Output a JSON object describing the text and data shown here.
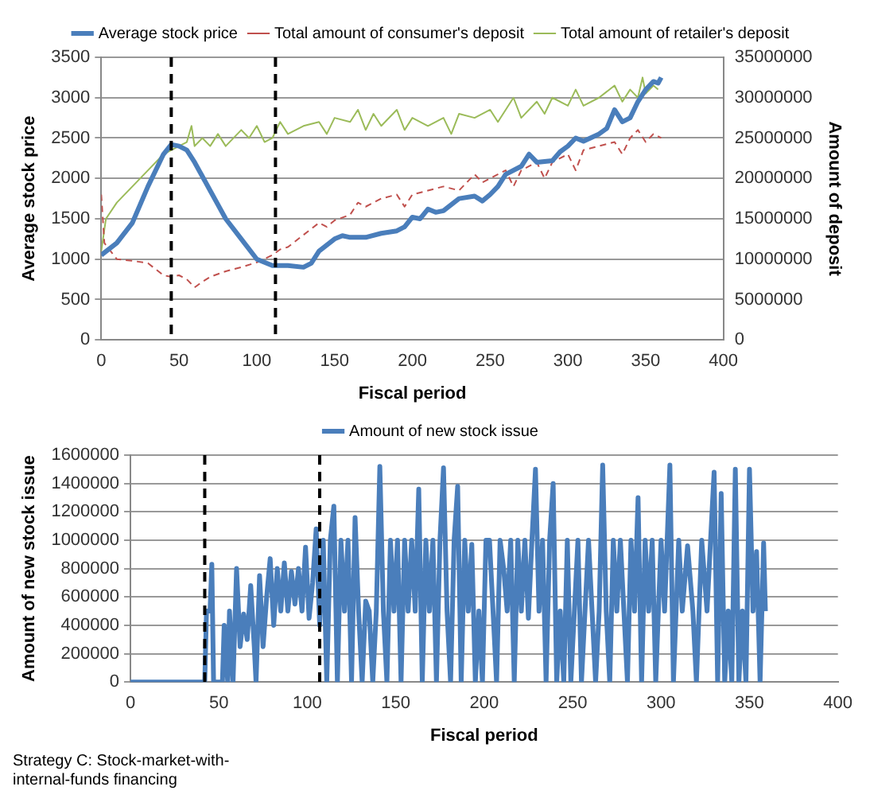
{
  "chart_data": [
    {
      "type": "line",
      "xlabel": "Fiscal period",
      "ylabel": "Average stock price",
      "y2label": "Amount of deposit",
      "xlim": [
        0,
        400
      ],
      "xticks": [
        0,
        50,
        100,
        150,
        200,
        250,
        300,
        350,
        400
      ],
      "ylim": [
        0,
        3500
      ],
      "yticks": [
        0,
        500,
        1000,
        1500,
        2000,
        2500,
        3000,
        3500
      ],
      "y2lim": [
        0,
        35000000
      ],
      "y2ticks": [
        0,
        5000000,
        10000000,
        15000000,
        20000000,
        25000000,
        30000000,
        35000000
      ],
      "grid": "y",
      "legend": "top",
      "marker": "none",
      "ref_lines": [
        {
          "axis": "x",
          "value": 45,
          "color": "#000000",
          "line_style": "dashed"
        },
        {
          "axis": "x",
          "value": 112,
          "color": "#000000",
          "line_style": "dashed"
        }
      ],
      "series": [
        {
          "name": "Average stock price",
          "color": "#4a7ebb",
          "line_style": "solid",
          "x": [
            0,
            10,
            20,
            30,
            40,
            45,
            50,
            55,
            60,
            70,
            80,
            90,
            100,
            110,
            120,
            130,
            135,
            140,
            150,
            155,
            160,
            170,
            180,
            190,
            195,
            200,
            205,
            210,
            215,
            220,
            230,
            240,
            245,
            250,
            255,
            260,
            270,
            275,
            280,
            290,
            295,
            300,
            305,
            310,
            320,
            325,
            330,
            335,
            340,
            345,
            350,
            355,
            358,
            360
          ],
          "values": [
            1050,
            1200,
            1450,
            1900,
            2300,
            2420,
            2400,
            2350,
            2200,
            1850,
            1500,
            1250,
            1000,
            920,
            920,
            900,
            950,
            1100,
            1250,
            1290,
            1270,
            1270,
            1320,
            1350,
            1400,
            1520,
            1500,
            1620,
            1580,
            1600,
            1750,
            1780,
            1720,
            1800,
            1900,
            2050,
            2150,
            2300,
            2200,
            2220,
            2330,
            2400,
            2500,
            2460,
            2550,
            2620,
            2850,
            2700,
            2750,
            2950,
            3100,
            3200,
            3180,
            3250
          ]
        },
        {
          "name": "Total amount of consumer's deposit",
          "color": "#c0504d",
          "line_style": "dashed",
          "axis": "y2",
          "x": [
            0,
            2,
            10,
            20,
            30,
            40,
            45,
            50,
            55,
            60,
            65,
            70,
            80,
            90,
            100,
            110,
            115,
            120,
            130,
            140,
            145,
            150,
            160,
            165,
            170,
            180,
            190,
            195,
            200,
            210,
            220,
            230,
            240,
            245,
            250,
            260,
            265,
            270,
            280,
            285,
            290,
            300,
            305,
            310,
            320,
            330,
            335,
            340,
            345,
            350,
            355,
            360
          ],
          "values": [
            18000000,
            12000000,
            10000000,
            9800000,
            9500000,
            8000000,
            7800000,
            8000000,
            7500000,
            6500000,
            7200000,
            7800000,
            8500000,
            9000000,
            9600000,
            10500000,
            11200000,
            11500000,
            13000000,
            14500000,
            14000000,
            14800000,
            15500000,
            17000000,
            16500000,
            17500000,
            18000000,
            16500000,
            18000000,
            18500000,
            19000000,
            18500000,
            20500000,
            19500000,
            20000000,
            21000000,
            19000000,
            21000000,
            22000000,
            20000000,
            22000000,
            23000000,
            21000000,
            23500000,
            24000000,
            24500000,
            23000000,
            25000000,
            26000000,
            24500000,
            25500000,
            25000000
          ]
        },
        {
          "name": "Total amount of retailer's deposit",
          "color": "#9bbb59",
          "line_style": "solid",
          "axis": "y2",
          "x": [
            0,
            3,
            10,
            20,
            30,
            40,
            50,
            55,
            58,
            60,
            65,
            70,
            75,
            80,
            90,
            95,
            100,
            105,
            110,
            115,
            120,
            130,
            140,
            145,
            150,
            160,
            165,
            170,
            175,
            180,
            190,
            195,
            200,
            210,
            220,
            225,
            230,
            240,
            250,
            255,
            260,
            265,
            270,
            280,
            285,
            290,
            300,
            305,
            310,
            320,
            330,
            335,
            340,
            345,
            348,
            350,
            355,
            358
          ],
          "values": [
            11000000,
            15000000,
            17000000,
            19000000,
            21000000,
            23000000,
            24000000,
            24500000,
            26500000,
            24000000,
            25000000,
            24000000,
            25500000,
            24000000,
            26000000,
            25000000,
            26500000,
            24500000,
            25000000,
            27000000,
            25500000,
            26500000,
            27000000,
            25500000,
            27500000,
            27000000,
            28500000,
            26000000,
            28000000,
            26500000,
            28500000,
            26000000,
            27500000,
            26500000,
            27500000,
            25500000,
            28000000,
            27500000,
            28500000,
            27000000,
            28500000,
            30000000,
            27500000,
            29500000,
            28000000,
            30000000,
            29000000,
            31000000,
            29000000,
            30000000,
            31500000,
            29500000,
            31000000,
            30000000,
            32500000,
            30500000,
            31500000,
            31000000
          ]
        }
      ]
    },
    {
      "type": "line",
      "xlabel": "Fiscal period",
      "ylabel": "Amount of new stock issue",
      "xlim": [
        0,
        400
      ],
      "xticks": [
        0,
        50,
        100,
        150,
        200,
        250,
        300,
        350,
        400
      ],
      "ylim": [
        0,
        1600000
      ],
      "yticks": [
        0,
        200000,
        400000,
        600000,
        800000,
        1000000,
        1200000,
        1400000,
        1600000
      ],
      "grid": "y",
      "legend": "top",
      "marker": "none",
      "ref_lines": [
        {
          "axis": "x",
          "value": 42,
          "color": "#000000",
          "line_style": "dashed"
        },
        {
          "axis": "x",
          "value": 107,
          "color": "#000000",
          "line_style": "dashed"
        }
      ],
      "annotations": [
        "Strategy C:  Stock-market-with-internal-funds financing"
      ],
      "series": [
        {
          "name": "Amount of new stock issue",
          "color": "#4a7ebb",
          "line_style": "solid",
          "x": [
            0,
            20,
            42,
            43,
            45,
            46,
            47,
            52,
            53,
            55,
            56,
            58,
            60,
            62,
            64,
            66,
            68,
            70,
            71,
            73,
            75,
            77,
            79,
            81,
            83,
            85,
            87,
            89,
            91,
            93,
            95,
            97,
            99,
            101,
            103,
            105,
            107,
            109,
            111,
            113,
            115,
            117,
            119,
            121,
            123,
            125,
            127,
            129,
            131,
            133,
            135,
            137,
            139,
            141,
            143,
            145,
            147,
            149,
            151,
            153,
            155,
            157,
            159,
            161,
            163,
            165,
            167,
            169,
            171,
            173,
            175,
            177,
            179,
            181,
            183,
            185,
            187,
            189,
            191,
            193,
            195,
            197,
            199,
            201,
            203,
            205,
            207,
            209,
            211,
            213,
            215,
            217,
            219,
            221,
            223,
            225,
            227,
            229,
            231,
            233,
            235,
            237,
            239,
            241,
            243,
            245,
            247,
            249,
            251,
            253,
            255,
            257,
            259,
            261,
            263,
            265,
            267,
            269,
            271,
            273,
            275,
            277,
            279,
            281,
            283,
            285,
            287,
            289,
            291,
            293,
            295,
            297,
            300,
            302,
            305,
            307,
            310,
            312,
            315,
            318,
            320,
            323,
            326,
            328,
            330,
            332,
            334,
            336,
            338,
            340,
            342,
            344,
            346,
            348,
            350,
            352,
            354,
            356,
            358,
            359
          ],
          "values": [
            0,
            0,
            0,
            500000,
            500000,
            830000,
            0,
            0,
            400000,
            0,
            500000,
            0,
            800000,
            250000,
            480000,
            300000,
            680000,
            250000,
            0,
            750000,
            250000,
            600000,
            870000,
            400000,
            800000,
            500000,
            840000,
            500000,
            780000,
            550000,
            800000,
            500000,
            950000,
            450000,
            700000,
            1080000,
            400000,
            1000000,
            0,
            1000000,
            1240000,
            0,
            1000000,
            500000,
            1000000,
            0,
            1160000,
            500000,
            0,
            570000,
            500000,
            0,
            500000,
            1520000,
            500000,
            0,
            1000000,
            500000,
            1000000,
            0,
            1000000,
            500000,
            1000000,
            500000,
            1360000,
            0,
            1000000,
            500000,
            1000000,
            0,
            1000000,
            1510000,
            500000,
            0,
            1000000,
            1380000,
            0,
            1000000,
            500000,
            970000,
            0,
            500000,
            0,
            1000000,
            1000000,
            500000,
            0,
            1000000,
            800000,
            500000,
            1000000,
            0,
            1000000,
            500000,
            1000000,
            450000,
            1000000,
            1500000,
            500000,
            1000000,
            0,
            1000000,
            1400000,
            0,
            500000,
            0,
            1000000,
            0,
            500000,
            1000000,
            0,
            500000,
            1000000,
            500000,
            0,
            500000,
            1530000,
            500000,
            0,
            1000000,
            500000,
            1000000,
            500000,
            0,
            1000000,
            500000,
            1300000,
            0,
            1000000,
            500000,
            1000000,
            0,
            1000000,
            500000,
            1530000,
            0,
            1000000,
            500000,
            960000,
            500000,
            0,
            1000000,
            500000,
            1000000,
            1480000,
            0,
            1330000,
            0,
            500000,
            0,
            1500000,
            0,
            500000,
            0,
            1500000,
            500000,
            920000,
            0,
            980000,
            500000
          ]
        }
      ]
    }
  ]
}
